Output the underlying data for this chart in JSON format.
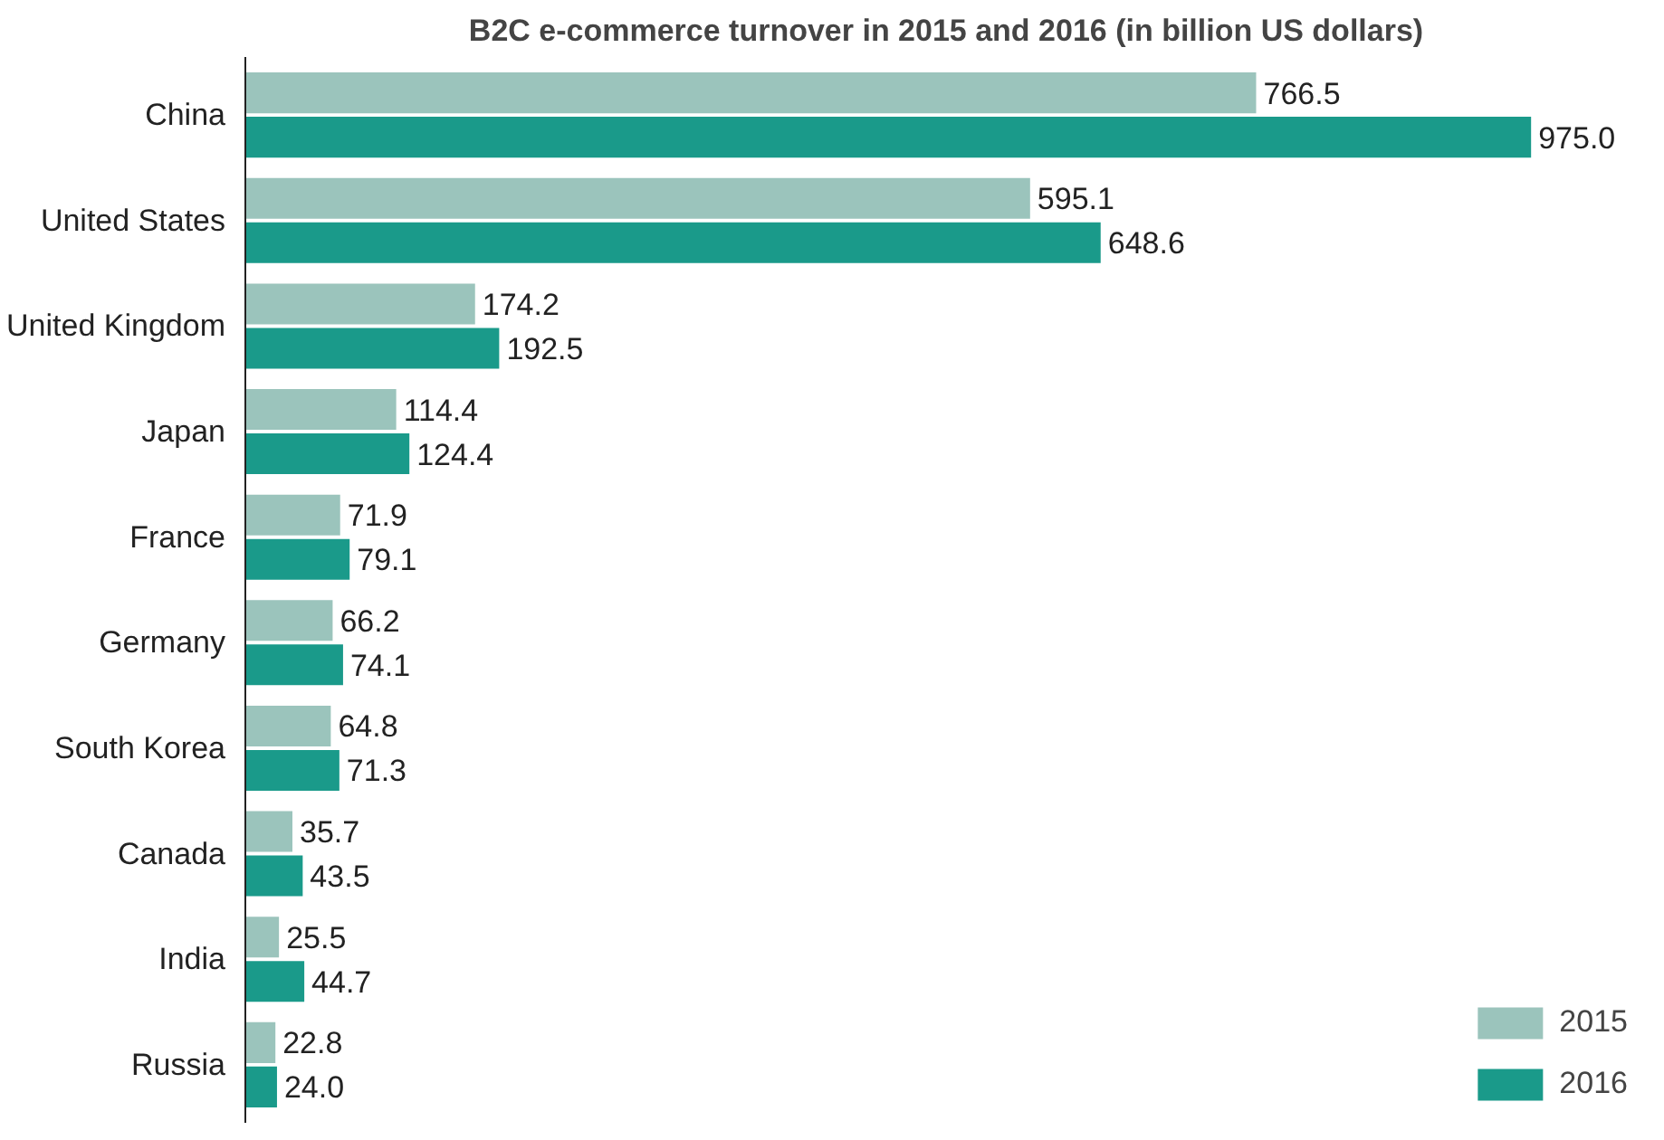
{
  "chart_data": {
    "type": "bar",
    "orientation": "horizontal",
    "title": "B2C e-commerce turnover in 2015 and 2016 (in billion US dollars)",
    "categories": [
      "China",
      "United States",
      "United Kingdom",
      "Japan",
      "France",
      "Germany",
      "South Korea",
      "Canada",
      "India",
      "Russia"
    ],
    "series": [
      {
        "name": "2015",
        "color": "#9bc4bc",
        "values": [
          766.5,
          595.1,
          174.2,
          114.4,
          71.9,
          66.2,
          64.8,
          35.7,
          25.5,
          22.8
        ],
        "value_labels": [
          "766.5",
          "595.1",
          "174.2",
          "114.4",
          "71.9",
          "66.2",
          "64.8",
          "35.7",
          "25.5",
          "22.8"
        ]
      },
      {
        "name": "2016",
        "color": "#1a9a8a",
        "values": [
          975.0,
          648.6,
          192.5,
          124.4,
          79.1,
          74.1,
          71.3,
          43.5,
          44.7,
          24.0
        ],
        "value_labels": [
          "975.0",
          "648.6",
          "192.5",
          "124.4",
          "79.1",
          "74.1",
          "71.3",
          "43.5",
          "44.7",
          "24.0"
        ]
      }
    ],
    "legend": "bottom right",
    "grid": false
  }
}
